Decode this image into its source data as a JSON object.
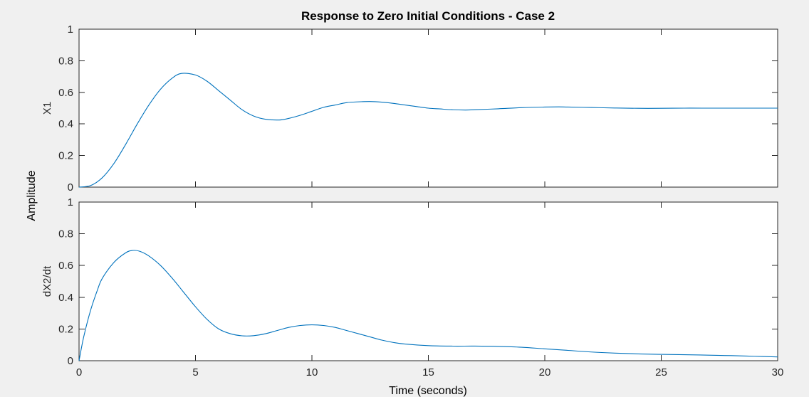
{
  "title": "Response to Zero Initial Conditions - Case 2",
  "xlabel": "Time (seconds)",
  "ylabel": "Amplitude",
  "colors": {
    "line": "#0072bd",
    "axes": "#262626",
    "background": "#f0f0f0",
    "plot_area": "#ffffff"
  },
  "chart_data": [
    {
      "type": "line",
      "title": "Response to Zero Initial Conditions - Case 2",
      "ylabel": "X1",
      "xlim": [
        0,
        30
      ],
      "ylim": [
        0,
        1
      ],
      "xticks": [
        0,
        5,
        10,
        15,
        20,
        25,
        30
      ],
      "yticks": [
        0,
        0.2,
        0.4,
        0.6,
        0.8,
        1
      ],
      "xtick_labels": [
        "0",
        "5",
        "10",
        "15",
        "20",
        "25",
        "30"
      ],
      "ytick_labels": [
        "0",
        "0.2",
        "0.4",
        "0.6",
        "0.8",
        "1"
      ],
      "show_xtick_labels": false,
      "grid": false,
      "series": [
        {
          "x": [
            0,
            0.5,
            1,
            1.5,
            2,
            2.5,
            3,
            3.5,
            4,
            4.4,
            5,
            5.5,
            6,
            6.5,
            7,
            7.5,
            8,
            8.6,
            9,
            9.5,
            10,
            10.5,
            11,
            11.5,
            12,
            12.5,
            13,
            13.5,
            14,
            14.5,
            15,
            15.5,
            16,
            16.6,
            17,
            18,
            19,
            20,
            20.6,
            21,
            22,
            23,
            24,
            25,
            26,
            27,
            28,
            29,
            30
          ],
          "y": [
            0,
            0.01,
            0.06,
            0.15,
            0.27,
            0.4,
            0.52,
            0.62,
            0.69,
            0.72,
            0.71,
            0.67,
            0.61,
            0.55,
            0.49,
            0.45,
            0.43,
            0.425,
            0.435,
            0.455,
            0.48,
            0.505,
            0.52,
            0.535,
            0.54,
            0.542,
            0.538,
            0.53,
            0.52,
            0.51,
            0.5,
            0.495,
            0.49,
            0.488,
            0.49,
            0.496,
            0.503,
            0.507,
            0.508,
            0.507,
            0.504,
            0.501,
            0.499,
            0.499,
            0.5,
            0.5,
            0.5,
            0.5,
            0.5
          ]
        }
      ]
    },
    {
      "type": "line",
      "ylabel": "dX2/dt",
      "xlabel": "Time (seconds)",
      "xlim": [
        0,
        30
      ],
      "ylim": [
        0,
        1
      ],
      "xticks": [
        0,
        5,
        10,
        15,
        20,
        25,
        30
      ],
      "yticks": [
        0,
        0.2,
        0.4,
        0.6,
        0.8,
        1
      ],
      "xtick_labels": [
        "0",
        "5",
        "10",
        "15",
        "20",
        "25",
        "30"
      ],
      "ytick_labels": [
        "0",
        "0.2",
        "0.4",
        "0.6",
        "0.8",
        "1"
      ],
      "show_xtick_labels": true,
      "grid": false,
      "series": [
        {
          "x": [
            0,
            0.2,
            0.5,
            0.8,
            1,
            1.5,
            2,
            2.3,
            2.6,
            3,
            3.5,
            4,
            4.5,
            5,
            5.5,
            6,
            6.5,
            7,
            7.5,
            8,
            8.5,
            9,
            9.5,
            10,
            10.5,
            11,
            11.5,
            12,
            12.5,
            13,
            13.5,
            14,
            15,
            16,
            17,
            18,
            19,
            20,
            21,
            22,
            23,
            24,
            25,
            26,
            27,
            28,
            29,
            30
          ],
          "y": [
            0,
            0.15,
            0.32,
            0.45,
            0.52,
            0.62,
            0.68,
            0.695,
            0.69,
            0.66,
            0.6,
            0.52,
            0.43,
            0.34,
            0.26,
            0.2,
            0.17,
            0.157,
            0.158,
            0.17,
            0.19,
            0.21,
            0.222,
            0.226,
            0.222,
            0.21,
            0.19,
            0.17,
            0.15,
            0.13,
            0.115,
            0.105,
            0.095,
            0.092,
            0.092,
            0.09,
            0.085,
            0.075,
            0.065,
            0.055,
            0.048,
            0.043,
            0.04,
            0.038,
            0.035,
            0.032,
            0.028,
            0.024
          ]
        }
      ]
    }
  ]
}
